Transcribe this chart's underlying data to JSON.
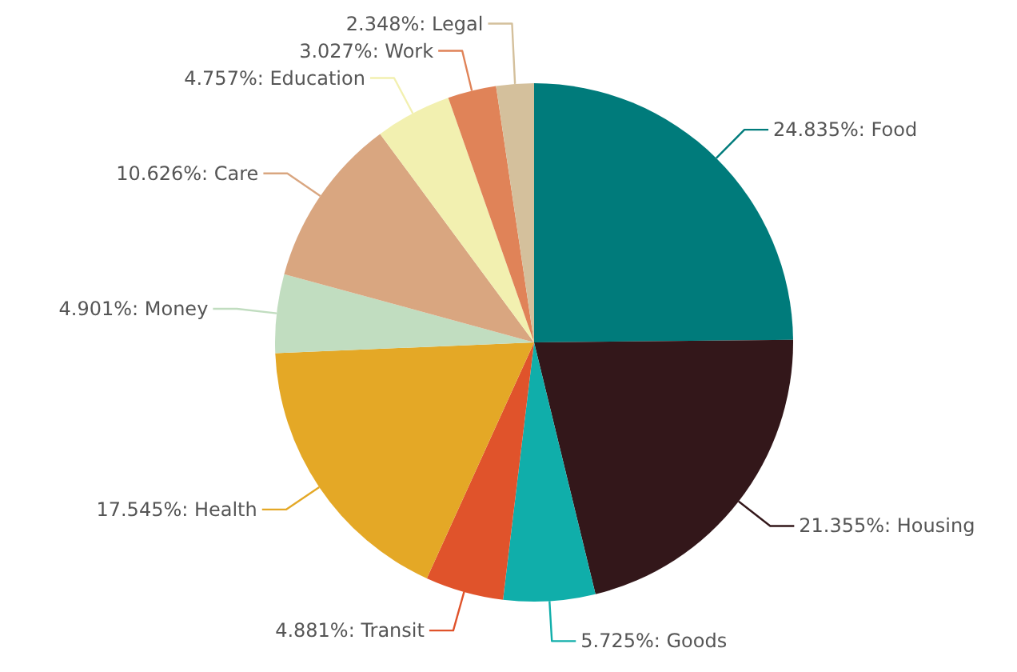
{
  "chart_data": {
    "type": "pie",
    "categories": [
      "Food",
      "Housing",
      "Goods",
      "Transit",
      "Health",
      "Money",
      "Care",
      "Education",
      "Work",
      "Legal"
    ],
    "values": [
      24.835,
      21.355,
      5.725,
      4.881,
      17.545,
      4.901,
      10.626,
      4.757,
      3.027,
      2.348
    ],
    "value_labels": [
      "24.835%:",
      "21.355%:",
      "5.725%:",
      "4.881%:",
      "17.545%:",
      "4.901%:",
      "10.626%:",
      "4.757%:",
      "3.027%:",
      "2.348%:"
    ],
    "colors": [
      "#007b7b",
      "#33171a",
      "#10aeaa",
      "#e0532b",
      "#e4a826",
      "#c1ddc0",
      "#d9a680",
      "#f2f0b0",
      "#e08358",
      "#d4c09c"
    ]
  }
}
